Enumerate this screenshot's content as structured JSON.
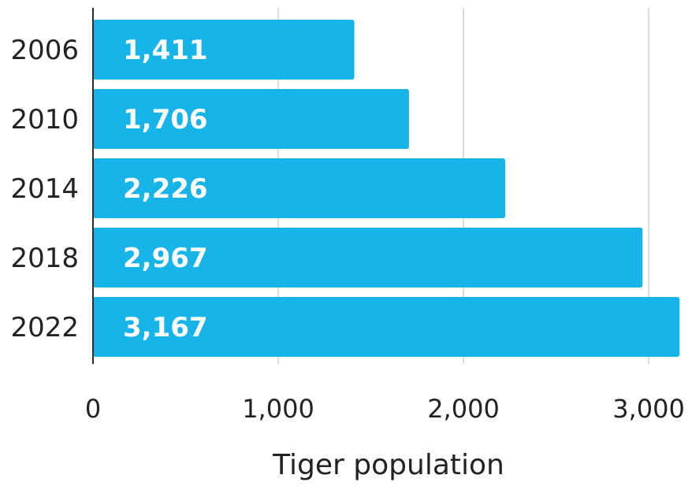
{
  "chart_data": {
    "type": "bar",
    "orientation": "horizontal",
    "categories": [
      "2006",
      "2010",
      "2014",
      "2018",
      "2022"
    ],
    "values": [
      1411,
      1706,
      2226,
      2967,
      3167
    ],
    "value_labels": [
      "1,411",
      "1,706",
      "2,226",
      "2,967",
      "3,167"
    ],
    "xlabel": "Tiger population",
    "ylabel": "",
    "xlim": [
      0,
      3200
    ],
    "x_ticks": [
      0,
      1000,
      2000,
      3000
    ],
    "x_tick_labels": [
      "0",
      "1,000",
      "2,000",
      "3,000"
    ],
    "grid": "vertical",
    "bar_color": "#16b4e8",
    "label_color": "#ffffff"
  }
}
